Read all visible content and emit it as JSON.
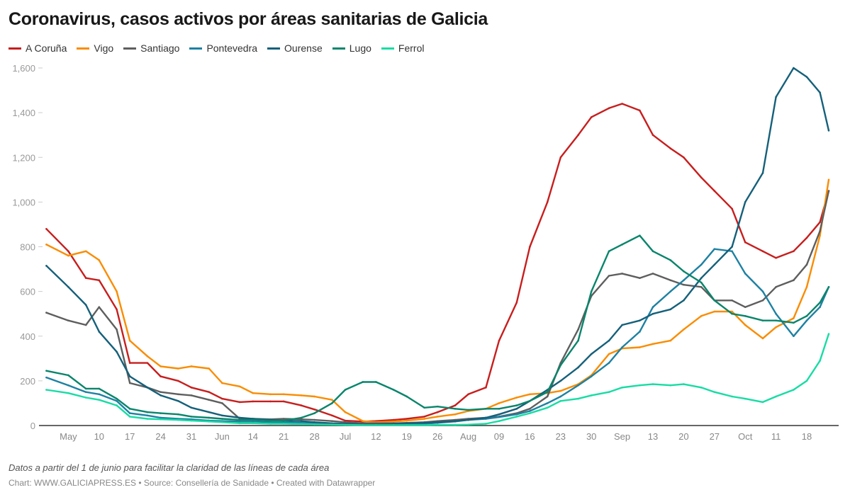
{
  "chart_data": {
    "type": "line",
    "title": "Coronavirus, casos activos por áreas sanitarias de Galicia",
    "ylim": [
      0,
      1600
    ],
    "yticks": [
      0,
      200,
      400,
      600,
      800,
      1000,
      1200,
      1400,
      1600
    ],
    "ytick_labels": [
      "0",
      "200",
      "400",
      "600",
      "800",
      "1,000",
      "1,200",
      "1,400",
      "1,600"
    ],
    "xlim": [
      "Apr 28",
      "Oct 23"
    ],
    "xticks": [
      {
        "d": "May 3",
        "l": "May"
      },
      {
        "d": "May 10",
        "l": "10"
      },
      {
        "d": "May 17",
        "l": "17"
      },
      {
        "d": "May 24",
        "l": "24"
      },
      {
        "d": "May 31",
        "l": "31"
      },
      {
        "d": "Jun 7",
        "l": "Jun"
      },
      {
        "d": "Jun 14",
        "l": "14"
      },
      {
        "d": "Jun 21",
        "l": "21"
      },
      {
        "d": "Jun 28",
        "l": "28"
      },
      {
        "d": "Jul 5",
        "l": "Jul"
      },
      {
        "d": "Jul 12",
        "l": "12"
      },
      {
        "d": "Jul 19",
        "l": "19"
      },
      {
        "d": "Jul 26",
        "l": "26"
      },
      {
        "d": "Aug 2",
        "l": "Aug"
      },
      {
        "d": "Aug 9",
        "l": "09"
      },
      {
        "d": "Aug 16",
        "l": "16"
      },
      {
        "d": "Aug 23",
        "l": "23"
      },
      {
        "d": "Aug 30",
        "l": "30"
      },
      {
        "d": "Sep 6",
        "l": "Sep"
      },
      {
        "d": "Sep 13",
        "l": "13"
      },
      {
        "d": "Sep 20",
        "l": "20"
      },
      {
        "d": "Sep 27",
        "l": "27"
      },
      {
        "d": "Oct 4",
        "l": "Oct"
      },
      {
        "d": "Oct 11",
        "l": "11"
      },
      {
        "d": "Oct 18",
        "l": "18"
      }
    ],
    "grid": false,
    "legend_placement": "top-left",
    "x": [
      "Apr 28",
      "May 3",
      "May 7",
      "May 10",
      "May 14",
      "May 17",
      "May 21",
      "May 24",
      "May 28",
      "May 31",
      "Jun 4",
      "Jun 7",
      "Jun 11",
      "Jun 14",
      "Jun 18",
      "Jun 21",
      "Jun 25",
      "Jun 28",
      "Jul 2",
      "Jul 5",
      "Jul 9",
      "Jul 12",
      "Jul 16",
      "Jul 19",
      "Jul 23",
      "Jul 26",
      "Jul 30",
      "Aug 2",
      "Aug 6",
      "Aug 9",
      "Aug 13",
      "Aug 16",
      "Aug 20",
      "Aug 23",
      "Aug 27",
      "Aug 30",
      "Sep 3",
      "Sep 6",
      "Sep 10",
      "Sep 13",
      "Sep 17",
      "Sep 20",
      "Sep 24",
      "Sep 27",
      "Oct 1",
      "Oct 4",
      "Oct 8",
      "Oct 11",
      "Oct 15",
      "Oct 18",
      "Oct 21",
      "Oct 23"
    ],
    "series": [
      {
        "name": "A Coruña",
        "color": "#c71e1d",
        "values": [
          880,
          780,
          660,
          650,
          520,
          280,
          280,
          220,
          200,
          170,
          150,
          120,
          105,
          108,
          108,
          108,
          90,
          72,
          45,
          22,
          18,
          20,
          25,
          30,
          40,
          60,
          90,
          140,
          170,
          380,
          550,
          800,
          1000,
          1200,
          1300,
          1380,
          1420,
          1440,
          1410,
          1300,
          1240,
          1200,
          1110,
          1050,
          970,
          820,
          780,
          750,
          780,
          840,
          910,
          1050
        ]
      },
      {
        "name": "Vigo",
        "color": "#fa8c00",
        "values": [
          810,
          760,
          780,
          740,
          600,
          380,
          310,
          265,
          255,
          265,
          255,
          190,
          175,
          145,
          140,
          140,
          135,
          130,
          115,
          60,
          20,
          15,
          18,
          22,
          30,
          40,
          50,
          65,
          75,
          100,
          125,
          140,
          145,
          155,
          185,
          225,
          320,
          345,
          350,
          365,
          380,
          430,
          490,
          510,
          510,
          450,
          390,
          440,
          480,
          620,
          850,
          1100
        ]
      },
      {
        "name": "Santiago",
        "color": "#5e5e5e",
        "values": [
          505,
          470,
          450,
          530,
          430,
          190,
          170,
          150,
          140,
          135,
          115,
          100,
          30,
          30,
          28,
          30,
          28,
          25,
          20,
          15,
          10,
          10,
          10,
          12,
          15,
          20,
          25,
          30,
          35,
          40,
          55,
          75,
          130,
          280,
          430,
          580,
          670,
          680,
          660,
          680,
          650,
          630,
          620,
          560,
          560,
          530,
          560,
          620,
          650,
          720,
          870,
          1050
        ]
      },
      {
        "name": "Pontevedra",
        "color": "#1d81a2",
        "values": [
          215,
          180,
          150,
          140,
          110,
          55,
          45,
          35,
          30,
          28,
          22,
          20,
          18,
          18,
          15,
          15,
          12,
          10,
          8,
          5,
          3,
          3,
          4,
          5,
          8,
          12,
          18,
          25,
          30,
          38,
          50,
          65,
          100,
          130,
          180,
          220,
          280,
          350,
          420,
          530,
          600,
          650,
          720,
          790,
          780,
          680,
          600,
          500,
          400,
          470,
          530,
          620
        ]
      },
      {
        "name": "Ourense",
        "color": "#15607a",
        "values": [
          715,
          620,
          540,
          420,
          330,
          220,
          170,
          135,
          110,
          80,
          60,
          45,
          35,
          30,
          25,
          22,
          20,
          15,
          10,
          8,
          5,
          5,
          8,
          10,
          12,
          15,
          20,
          25,
          35,
          50,
          75,
          110,
          160,
          200,
          260,
          320,
          380,
          450,
          470,
          500,
          520,
          560,
          660,
          720,
          800,
          1000,
          1130,
          1470,
          1600,
          1560,
          1490,
          1320
        ]
      },
      {
        "name": "Lugo",
        "color": "#09856b",
        "values": [
          245,
          225,
          165,
          165,
          120,
          75,
          60,
          55,
          50,
          40,
          35,
          30,
          25,
          25,
          22,
          22,
          35,
          55,
          100,
          160,
          195,
          195,
          160,
          130,
          80,
          85,
          75,
          70,
          75,
          75,
          90,
          110,
          150,
          270,
          380,
          600,
          780,
          810,
          850,
          780,
          740,
          690,
          640,
          560,
          500,
          490,
          470,
          470,
          460,
          490,
          550,
          620
        ]
      },
      {
        "name": "Ferrol",
        "color": "#18dca4",
        "values": [
          160,
          145,
          125,
          115,
          90,
          40,
          30,
          28,
          25,
          22,
          18,
          15,
          10,
          10,
          8,
          8,
          6,
          5,
          4,
          3,
          2,
          2,
          2,
          2,
          2,
          3,
          3,
          4,
          8,
          20,
          40,
          55,
          80,
          110,
          120,
          135,
          150,
          170,
          180,
          185,
          180,
          185,
          170,
          150,
          130,
          120,
          105,
          130,
          160,
          200,
          290,
          410
        ]
      }
    ]
  },
  "footer": {
    "note": "Datos a partir del 1 de junio para facilitar la claridad de las líneas de cada área",
    "credit": "Chart: WWW.GALICIAPRESS.ES • Source: Consellería de Sanidade • Created with Datawrapper"
  }
}
